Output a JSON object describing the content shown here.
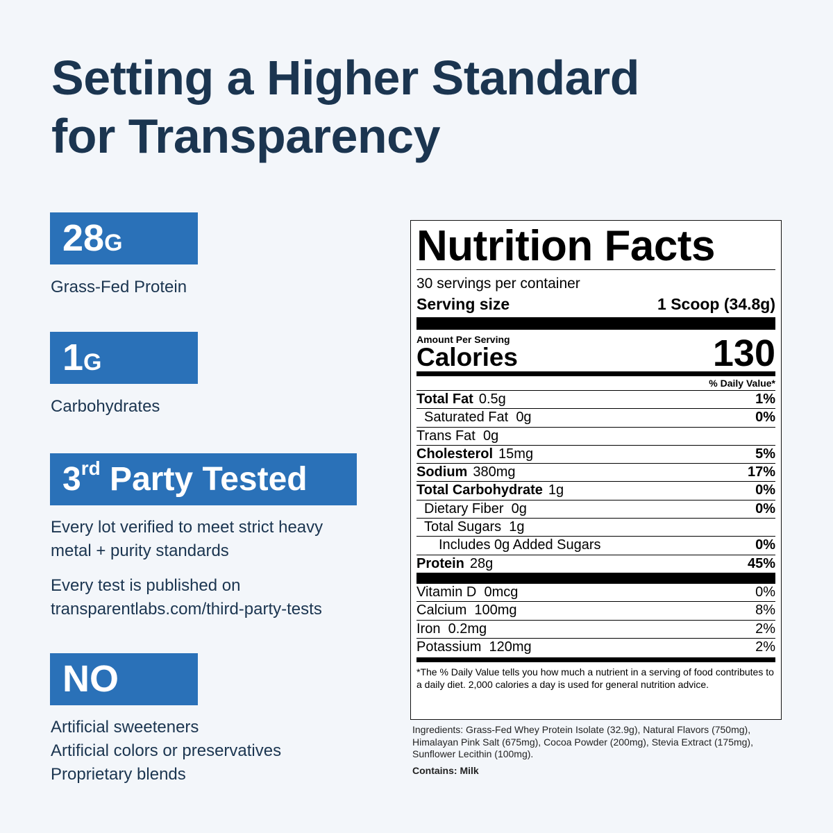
{
  "header": {
    "title_lines": [
      "Setting a Higher Standard",
      "for Transparency"
    ]
  },
  "features": [
    {
      "badge": "28",
      "unit": "G",
      "lines": [
        "Grass-Fed Protein"
      ]
    },
    {
      "badge": "1",
      "unit": "G",
      "lines": [
        "Carbohydrates"
      ]
    },
    {
      "badge": "3",
      "sup": "rd",
      "rest": "Party Tested",
      "paragraphs": [
        [
          "Every lot verified to meet strict heavy",
          "metal + purity standards"
        ],
        [
          "Every test is published on",
          "transparentlabs.com/third-party-tests"
        ]
      ]
    },
    {
      "badge": "NO",
      "lines": [
        "Artificial sweeteners",
        "Artificial colors or preservatives",
        "Proprietary blends"
      ]
    }
  ],
  "nutrition": {
    "title": "Nutrition Facts",
    "servings": "30 servings per container",
    "serving_size_label": "Serving size",
    "serving_size_value": "1 Scoop (34.8g)",
    "amount_per_serving": "Amount Per Serving",
    "calories_label": "Calories",
    "calories_value": 130,
    "dv_header": "% Daily Value*",
    "rows": [
      {
        "name": "Total Fat",
        "amount": "0.5g",
        "dv": "1%"
      },
      {
        "name": "Saturated Fat",
        "amount": "0g",
        "dv": "0%"
      },
      {
        "name": "Trans Fat",
        "amount": "0g"
      },
      {
        "name": "Cholesterol",
        "amount": "15mg",
        "dv": "5%"
      },
      {
        "name": "Sodium",
        "amount": "380mg",
        "dv": "17%"
      },
      {
        "name": "Total Carbohydrate",
        "amount": "1g",
        "dv": "0%"
      },
      {
        "name": "Dietary Fiber",
        "amount": "0g",
        "dv": "0%"
      },
      {
        "name": "Total Sugars",
        "amount": "1g"
      },
      {
        "name": "Includes 0g Added Sugars",
        "dv": "0%"
      },
      {
        "name": "Protein",
        "amount": "28g",
        "dv": "45%"
      }
    ],
    "vitamins": [
      {
        "name": "Vitamin D",
        "amount": "0mcg",
        "dv": "0%"
      },
      {
        "name": "Calcium",
        "amount": "100mg",
        "dv": "8%"
      },
      {
        "name": "Iron",
        "amount": "0.2mg",
        "dv": "2%"
      },
      {
        "name": "Potassium",
        "amount": "120mg",
        "dv": "2%"
      }
    ],
    "footnote": "*The % Daily Value tells you how much a nutrient in a serving of food contributes to a daily diet. 2,000 calories a day is used for general nutrition advice.",
    "ingredients": "Ingredients: Grass-Fed Whey Protein Isolate (32.9g), Natural Flavors (750mg), Himalayan Pink Salt (675mg), Cocoa Powder (200mg), Stevia Extract (175mg), Sunflower Lecithin (100mg).",
    "contains": "Contains: Milk"
  }
}
